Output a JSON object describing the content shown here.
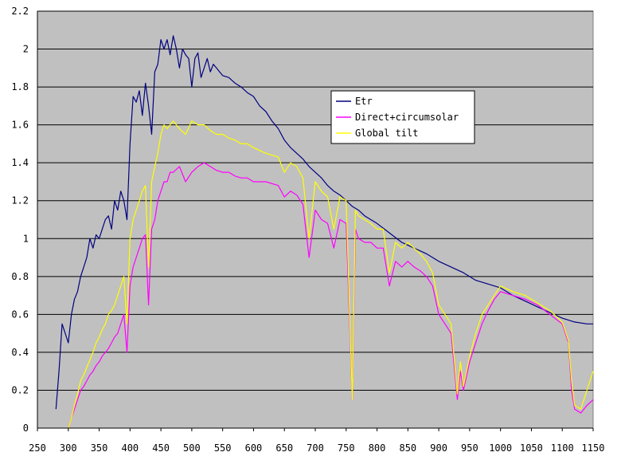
{
  "chart_data": {
    "type": "line",
    "title": "",
    "xlabel": "",
    "ylabel": "",
    "xlim": [
      250,
      1150
    ],
    "ylim": [
      0,
      2.2
    ],
    "x_ticks": [
      "250",
      "300",
      "350",
      "400",
      "450",
      "500",
      "550",
      "600",
      "650",
      "700",
      "750",
      "800",
      "850",
      "900",
      "950",
      "1000",
      "1050",
      "1100",
      "1150"
    ],
    "y_ticks": [
      "0",
      "0.2",
      "0.4",
      "0.6",
      "0.8",
      "1",
      "1.2",
      "1.4",
      "1.6",
      "1.8",
      "2",
      "2.2"
    ],
    "grid": "horizontal",
    "legend_position": "right",
    "plot_background": "#c0c0c0",
    "series": [
      {
        "name": "Etr",
        "color": "#000080",
        "x": [
          280,
          285,
          290,
          295,
          300,
          305,
          310,
          315,
          320,
          325,
          330,
          335,
          340,
          345,
          350,
          355,
          360,
          365,
          370,
          375,
          380,
          385,
          390,
          395,
          400,
          405,
          410,
          415,
          420,
          425,
          430,
          435,
          440,
          445,
          450,
          455,
          460,
          465,
          470,
          475,
          480,
          485,
          490,
          495,
          500,
          505,
          510,
          515,
          520,
          525,
          530,
          535,
          540,
          545,
          550,
          560,
          570,
          580,
          590,
          600,
          610,
          620,
          630,
          640,
          650,
          660,
          670,
          680,
          690,
          700,
          710,
          720,
          730,
          740,
          750,
          760,
          770,
          780,
          790,
          800,
          820,
          840,
          860,
          880,
          900,
          920,
          940,
          960,
          980,
          1000,
          1020,
          1040,
          1060,
          1080,
          1100,
          1120,
          1140,
          1150
        ],
        "y": [
          0.1,
          0.3,
          0.55,
          0.5,
          0.45,
          0.6,
          0.68,
          0.72,
          0.8,
          0.85,
          0.9,
          1.0,
          0.95,
          1.02,
          1.0,
          1.05,
          1.1,
          1.12,
          1.05,
          1.2,
          1.15,
          1.25,
          1.2,
          1.1,
          1.5,
          1.75,
          1.72,
          1.78,
          1.65,
          1.82,
          1.7,
          1.55,
          1.88,
          1.92,
          2.05,
          2.0,
          2.05,
          1.97,
          2.07,
          2.0,
          1.9,
          2.0,
          1.97,
          1.95,
          1.8,
          1.95,
          1.98,
          1.85,
          1.9,
          1.95,
          1.88,
          1.92,
          1.9,
          1.88,
          1.86,
          1.85,
          1.82,
          1.8,
          1.77,
          1.75,
          1.7,
          1.67,
          1.62,
          1.58,
          1.52,
          1.48,
          1.45,
          1.42,
          1.38,
          1.35,
          1.32,
          1.28,
          1.25,
          1.23,
          1.2,
          1.17,
          1.15,
          1.12,
          1.1,
          1.08,
          1.03,
          0.98,
          0.95,
          0.92,
          0.88,
          0.85,
          0.82,
          0.78,
          0.76,
          0.74,
          0.7,
          0.67,
          0.64,
          0.61,
          0.58,
          0.56,
          0.55,
          0.55
        ]
      },
      {
        "name": "Direct+circumsolar",
        "color": "#ff00ff",
        "x": [
          300,
          305,
          310,
          315,
          320,
          325,
          330,
          335,
          340,
          345,
          350,
          355,
          360,
          365,
          370,
          375,
          380,
          385,
          390,
          395,
          400,
          405,
          410,
          415,
          420,
          425,
          430,
          435,
          440,
          445,
          450,
          455,
          460,
          465,
          470,
          480,
          490,
          500,
          510,
          520,
          530,
          540,
          550,
          560,
          570,
          580,
          590,
          600,
          620,
          640,
          650,
          660,
          670,
          680,
          690,
          700,
          710,
          720,
          730,
          740,
          750,
          760,
          765,
          770,
          780,
          790,
          800,
          810,
          820,
          830,
          840,
          850,
          860,
          870,
          880,
          890,
          900,
          910,
          920,
          930,
          935,
          940,
          950,
          960,
          970,
          980,
          990,
          1000,
          1020,
          1040,
          1060,
          1080,
          1100,
          1110,
          1115,
          1120,
          1130,
          1140,
          1150
        ],
        "y": [
          0,
          0.05,
          0.1,
          0.15,
          0.2,
          0.22,
          0.25,
          0.28,
          0.3,
          0.33,
          0.35,
          0.38,
          0.4,
          0.42,
          0.45,
          0.48,
          0.5,
          0.55,
          0.6,
          0.4,
          0.75,
          0.85,
          0.9,
          0.95,
          1.0,
          1.02,
          0.65,
          1.05,
          1.1,
          1.2,
          1.25,
          1.3,
          1.3,
          1.35,
          1.35,
          1.38,
          1.3,
          1.35,
          1.38,
          1.4,
          1.38,
          1.36,
          1.35,
          1.35,
          1.33,
          1.32,
          1.32,
          1.3,
          1.3,
          1.28,
          1.22,
          1.25,
          1.23,
          1.18,
          0.9,
          1.15,
          1.1,
          1.08,
          0.95,
          1.1,
          1.08,
          0.15,
          1.05,
          1.0,
          0.98,
          0.98,
          0.95,
          0.95,
          0.75,
          0.88,
          0.85,
          0.88,
          0.85,
          0.83,
          0.8,
          0.75,
          0.6,
          0.55,
          0.5,
          0.15,
          0.3,
          0.2,
          0.35,
          0.45,
          0.55,
          0.62,
          0.68,
          0.72,
          0.7,
          0.68,
          0.65,
          0.6,
          0.55,
          0.45,
          0.2,
          0.1,
          0.08,
          0.12,
          0.15
        ]
      },
      {
        "name": "Global tilt",
        "color": "#ffff00",
        "x": [
          300,
          305,
          310,
          315,
          320,
          325,
          330,
          335,
          340,
          345,
          350,
          355,
          360,
          365,
          370,
          375,
          380,
          385,
          390,
          395,
          400,
          405,
          410,
          415,
          420,
          425,
          430,
          435,
          440,
          445,
          450,
          455,
          460,
          465,
          470,
          480,
          490,
          500,
          510,
          520,
          530,
          540,
          550,
          560,
          570,
          580,
          590,
          600,
          620,
          640,
          650,
          660,
          670,
          680,
          690,
          700,
          710,
          720,
          730,
          740,
          750,
          760,
          765,
          770,
          780,
          790,
          800,
          810,
          820,
          830,
          840,
          850,
          860,
          870,
          880,
          890,
          900,
          910,
          920,
          930,
          935,
          940,
          950,
          960,
          970,
          980,
          990,
          1000,
          1020,
          1040,
          1060,
          1080,
          1100,
          1110,
          1115,
          1120,
          1130,
          1140,
          1150
        ],
        "y": [
          0,
          0.05,
          0.12,
          0.18,
          0.25,
          0.28,
          0.32,
          0.36,
          0.4,
          0.45,
          0.48,
          0.52,
          0.55,
          0.6,
          0.62,
          0.65,
          0.7,
          0.75,
          0.8,
          0.55,
          1.0,
          1.1,
          1.15,
          1.2,
          1.25,
          1.28,
          0.85,
          1.3,
          1.38,
          1.45,
          1.55,
          1.6,
          1.58,
          1.6,
          1.62,
          1.58,
          1.55,
          1.62,
          1.6,
          1.6,
          1.57,
          1.55,
          1.55,
          1.53,
          1.52,
          1.5,
          1.5,
          1.48,
          1.45,
          1.43,
          1.35,
          1.4,
          1.38,
          1.32,
          1.0,
          1.3,
          1.25,
          1.22,
          1.05,
          1.22,
          1.2,
          0.15,
          1.15,
          1.12,
          1.1,
          1.08,
          1.05,
          1.05,
          0.82,
          0.98,
          0.95,
          0.98,
          0.95,
          0.92,
          0.88,
          0.82,
          0.65,
          0.6,
          0.55,
          0.18,
          0.35,
          0.22,
          0.38,
          0.5,
          0.6,
          0.65,
          0.7,
          0.75,
          0.72,
          0.7,
          0.66,
          0.62,
          0.56,
          0.46,
          0.25,
          0.12,
          0.1,
          0.2,
          0.3
        ]
      }
    ]
  }
}
